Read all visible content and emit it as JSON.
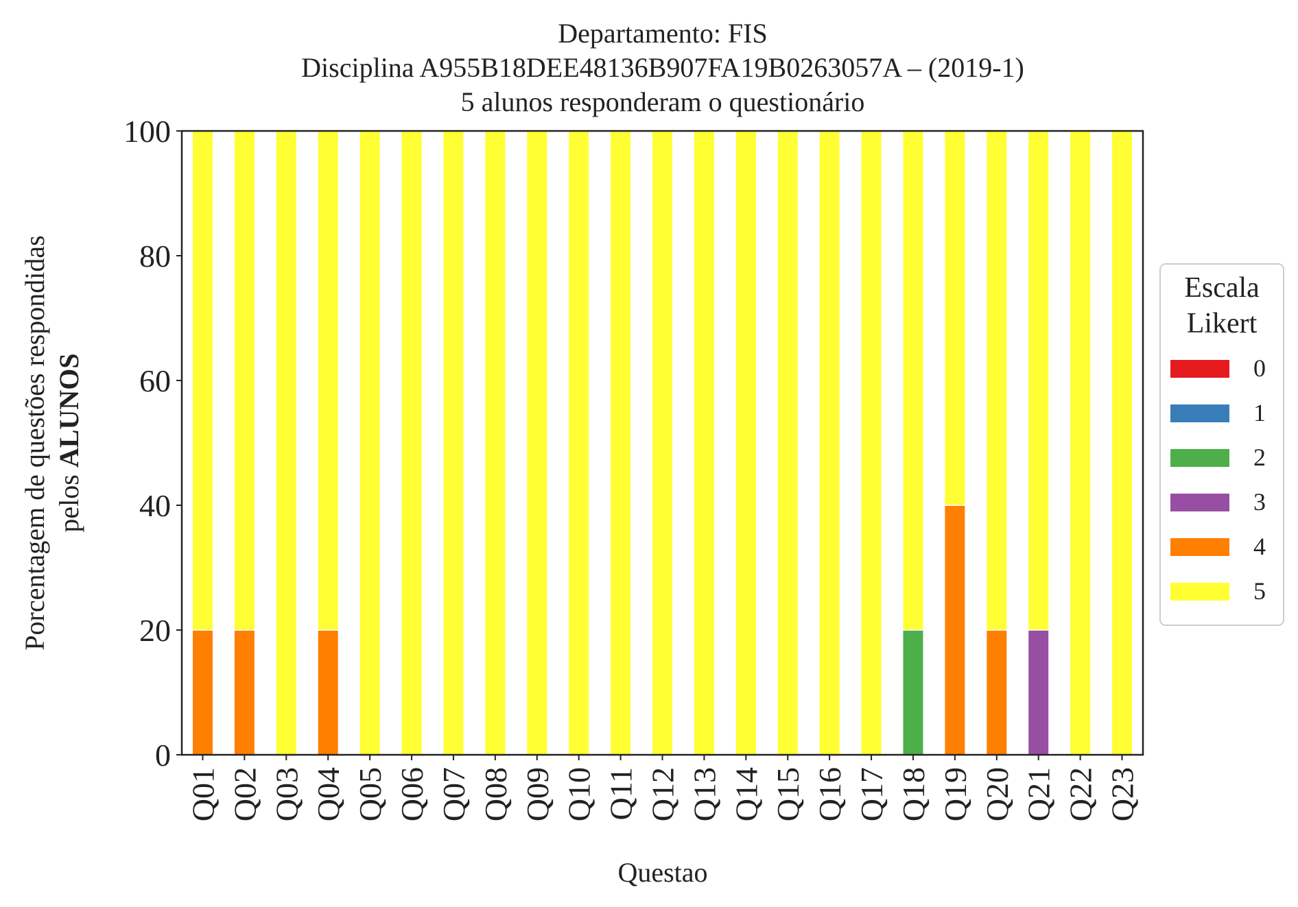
{
  "chart_data": {
    "type": "bar",
    "stacked": true,
    "title_lines": [
      "Departamento: FIS",
      "Disciplina A955B18DEE48136B907FA19B0263057A – (2019-1)",
      "5 alunos responderam o questionário"
    ],
    "xlabel": "Questao",
    "ylabel_line1": "Porcentagem de questões respondidas",
    "ylabel_line2_prefix": "pelos ",
    "ylabel_line2_bold": "ALUNOS",
    "ylim": [
      0,
      100
    ],
    "yticks": [
      0,
      20,
      40,
      60,
      80,
      100
    ],
    "grid": false,
    "legend": {
      "title_lines": [
        "Escala",
        "Likert"
      ],
      "placement": "right"
    },
    "categories": [
      "Q01",
      "Q02",
      "Q03",
      "Q04",
      "Q05",
      "Q06",
      "Q07",
      "Q08",
      "Q09",
      "Q10",
      "Q11",
      "Q12",
      "Q13",
      "Q14",
      "Q15",
      "Q16",
      "Q17",
      "Q18",
      "Q19",
      "Q20",
      "Q21",
      "Q22",
      "Q23"
    ],
    "series": [
      {
        "name": "0",
        "color": "#e41a1c",
        "values": [
          0,
          0,
          0,
          0,
          0,
          0,
          0,
          0,
          0,
          0,
          0,
          0,
          0,
          0,
          0,
          0,
          0,
          0,
          0,
          0,
          0,
          0,
          0
        ]
      },
      {
        "name": "1",
        "color": "#377eb8",
        "values": [
          0,
          0,
          0,
          0,
          0,
          0,
          0,
          0,
          0,
          0,
          0,
          0,
          0,
          0,
          0,
          0,
          0,
          0,
          0,
          0,
          0,
          0,
          0
        ]
      },
      {
        "name": "2",
        "color": "#4daf4a",
        "values": [
          0,
          0,
          0,
          0,
          0,
          0,
          0,
          0,
          0,
          0,
          0,
          0,
          0,
          0,
          0,
          0,
          0,
          20,
          0,
          0,
          0,
          0,
          0
        ]
      },
      {
        "name": "3",
        "color": "#984ea3",
        "values": [
          0,
          0,
          0,
          0,
          0,
          0,
          0,
          0,
          0,
          0,
          0,
          0,
          0,
          0,
          0,
          0,
          0,
          0,
          0,
          0,
          20,
          0,
          0
        ]
      },
      {
        "name": "4",
        "color": "#ff7f00",
        "values": [
          20,
          20,
          0,
          20,
          0,
          0,
          0,
          0,
          0,
          0,
          0,
          0,
          0,
          0,
          0,
          0,
          0,
          0,
          40,
          20,
          0,
          0,
          0
        ]
      },
      {
        "name": "5",
        "color": "#ffff33",
        "values": [
          80,
          80,
          100,
          80,
          100,
          100,
          100,
          100,
          100,
          100,
          100,
          100,
          100,
          100,
          100,
          100,
          100,
          80,
          60,
          80,
          80,
          100,
          100
        ]
      }
    ]
  }
}
